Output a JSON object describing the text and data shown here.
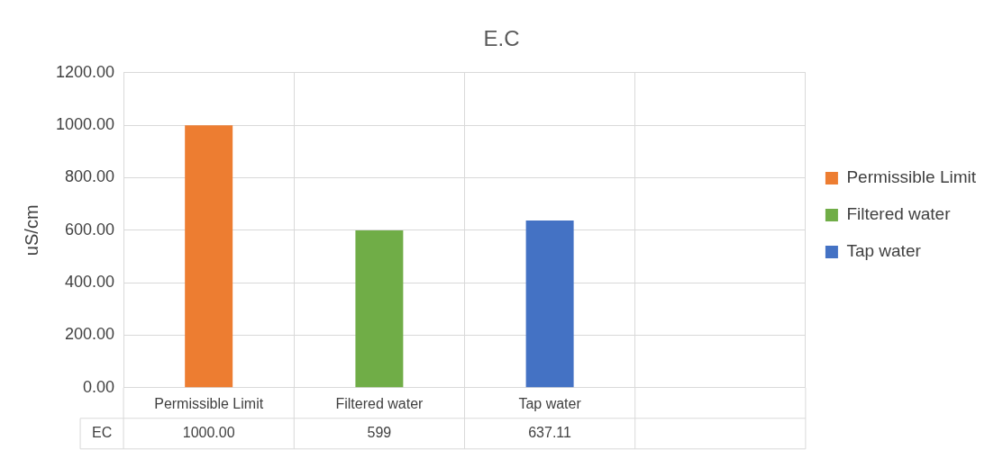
{
  "chart_data": {
    "type": "bar",
    "title": "E.C",
    "ylabel": "uS/cm",
    "categories": [
      "Permissible Limit",
      "Filtered water",
      "Tap water",
      null
    ],
    "series": [
      {
        "name": "Permissible Limit",
        "color": "#ed7d31",
        "values": [
          1000,
          null,
          null,
          null
        ],
        "value_labels": [
          "1000.00",
          null,
          null,
          null
        ]
      },
      {
        "name": "Filtered water",
        "color": "#70ad47",
        "values": [
          null,
          599,
          null,
          null
        ],
        "value_labels": [
          null,
          "599",
          null,
          null
        ]
      },
      {
        "name": "Tap water",
        "color": "#4472c4",
        "values": [
          null,
          null,
          637.11,
          null
        ],
        "value_labels": [
          null,
          null,
          "637.11",
          null
        ]
      }
    ],
    "annotations": [
      "EC"
    ],
    "ylim": [
      0,
      1200
    ],
    "yticks": [
      {
        "value": 0,
        "label": "0.00"
      },
      {
        "value": 200,
        "label": "200.00"
      },
      {
        "value": 400,
        "label": "400.00"
      },
      {
        "value": 600,
        "label": "600.00"
      },
      {
        "value": 800,
        "label": "800.00"
      },
      {
        "value": 1000,
        "label": "1000.00"
      },
      {
        "value": 1200,
        "label": "1200.00"
      }
    ],
    "grid": true,
    "legend": "right"
  }
}
